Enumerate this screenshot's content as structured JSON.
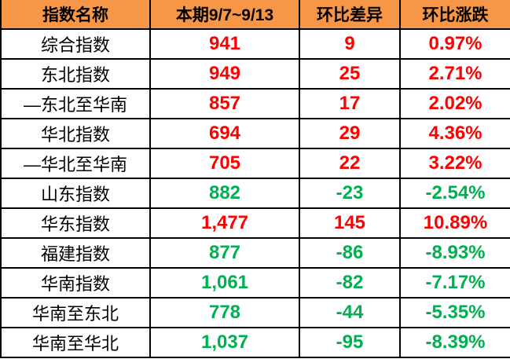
{
  "table": {
    "columns": [
      {
        "label": "指数名称"
      },
      {
        "label": "本期9/7~9/13"
      },
      {
        "label": "环比差异"
      },
      {
        "label": "环比涨跌"
      }
    ],
    "rows": [
      {
        "name": "综合指数",
        "current": "941",
        "diff": "9",
        "change": "0.97%",
        "trend": "up"
      },
      {
        "name": "东北指数",
        "current": "949",
        "diff": "25",
        "change": "2.71%",
        "trend": "up"
      },
      {
        "name": "—东北至华南",
        "current": "857",
        "diff": "17",
        "change": "2.02%",
        "trend": "up"
      },
      {
        "name": "华北指数",
        "current": "694",
        "diff": "29",
        "change": "4.36%",
        "trend": "up"
      },
      {
        "name": "—华北至华南",
        "current": "705",
        "diff": "22",
        "change": "3.22%",
        "trend": "up"
      },
      {
        "name": "山东指数",
        "current": "882",
        "diff": "-23",
        "change": "-2.54%",
        "trend": "down"
      },
      {
        "name": "华东指数",
        "current": "1,477",
        "diff": "145",
        "change": "10.89%",
        "trend": "up"
      },
      {
        "name": "福建指数",
        "current": "877",
        "diff": "-86",
        "change": "-8.93%",
        "trend": "down"
      },
      {
        "name": "华南指数",
        "current": "1,061",
        "diff": "-82",
        "change": "-7.17%",
        "trend": "down"
      },
      {
        "name": "华南至东北",
        "current": "778",
        "diff": "-44",
        "change": "-5.35%",
        "trend": "down"
      },
      {
        "name": "华南至华北",
        "current": "1,037",
        "diff": "-95",
        "change": "-8.39%",
        "trend": "down"
      }
    ]
  },
  "colors": {
    "header_bg": "#F79646",
    "header_text": "#000000",
    "label_text": "#000000",
    "row_bg": "#FFFFFF",
    "border": "#000000",
    "up": "#FF0000",
    "down": "#00B050"
  },
  "chart_data": {
    "type": "table",
    "columns": [
      "指数名称",
      "本期9/7~9/13",
      "环比差异",
      "环比涨跌"
    ],
    "rows": [
      [
        "综合指数",
        941,
        9,
        "0.97%"
      ],
      [
        "东北指数",
        949,
        25,
        "2.71%"
      ],
      [
        "—东北至华南",
        857,
        17,
        "2.02%"
      ],
      [
        "华北指数",
        694,
        29,
        "4.36%"
      ],
      [
        "—华北至华南",
        705,
        22,
        "3.22%"
      ],
      [
        "山东指数",
        882,
        -23,
        "-2.54%"
      ],
      [
        "华东指数",
        1477,
        145,
        "10.89%"
      ],
      [
        "福建指数",
        877,
        -86,
        "-8.93%"
      ],
      [
        "华南指数",
        1061,
        -82,
        "-7.17%"
      ],
      [
        "华南至东北",
        778,
        -44,
        "-5.35%"
      ],
      [
        "华南至华北",
        1037,
        -95,
        "-8.39%"
      ]
    ],
    "layout_hints": {
      "header_background": "#F79646",
      "positive_color": "#FF0000",
      "negative_color": "#00B050",
      "grid": "on"
    }
  }
}
